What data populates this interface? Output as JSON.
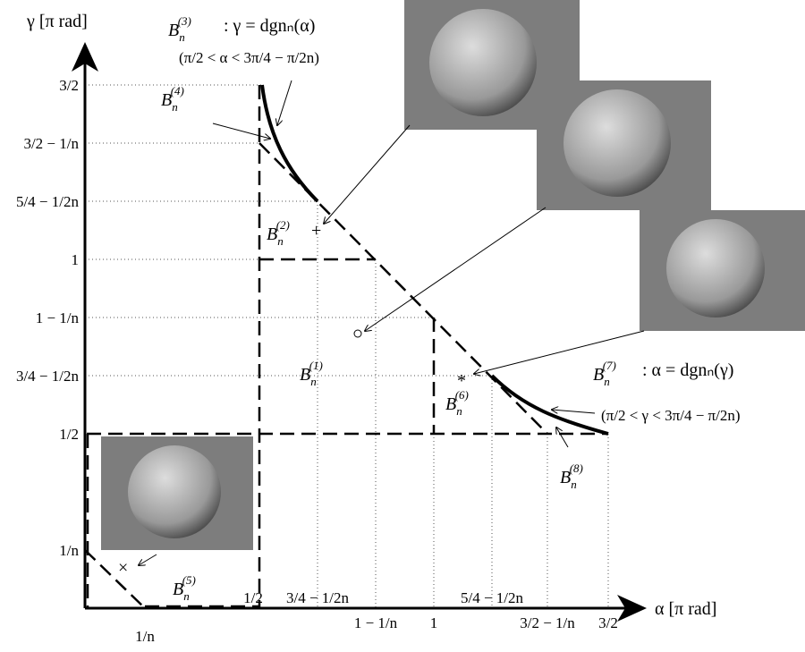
{
  "axes": {
    "y_label": "γ [π rad]",
    "x_label": "α [π rad]"
  },
  "x_ticks": [
    "1/n",
    "1/2",
    "3/4 − 1/2n",
    "1 − 1/n",
    "1",
    "5/4 − 1/2n",
    "3/2 − 1/n",
    "3/2"
  ],
  "y_ticks": [
    "1/n",
    "1/2",
    "3/4 − 1/2n",
    "1 − 1/n",
    "1",
    "5/4 − 1/2n",
    "3/2 − 1/n",
    "3/2"
  ],
  "regions": [
    {
      "base": "B",
      "sub": "n",
      "sup": "(1)"
    },
    {
      "base": "B",
      "sub": "n",
      "sup": "(2)"
    },
    {
      "base": "B",
      "sub": "n",
      "sup": "(3)"
    },
    {
      "base": "B",
      "sub": "n",
      "sup": "(4)"
    },
    {
      "base": "B",
      "sub": "n",
      "sup": "(5)"
    },
    {
      "base": "B",
      "sub": "n",
      "sup": "(6)"
    },
    {
      "base": "B",
      "sub": "n",
      "sup": "(7)"
    },
    {
      "base": "B",
      "sub": "n",
      "sup": "(8)"
    }
  ],
  "annotations": [
    {
      "formula": ": γ = dgnₙ(α)",
      "condition": "(π/2 < α < 3π/4 − π/2n)"
    },
    {
      "formula": ": α = dgnₙ(γ)",
      "condition": "(π/2 < γ < 3π/4 − π/2n)"
    }
  ]
}
